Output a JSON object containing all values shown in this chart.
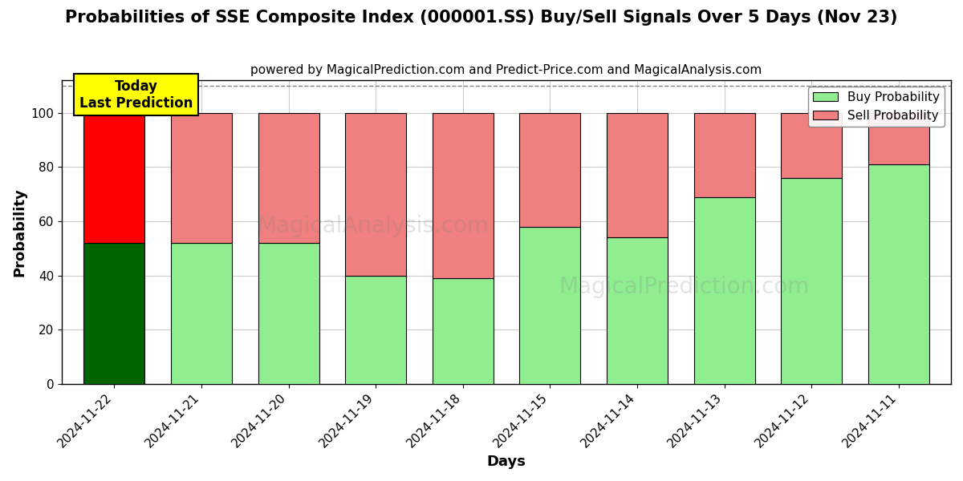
{
  "title": "Probabilities of SSE Composite Index (000001.SS) Buy/Sell Signals Over 5 Days (Nov 23)",
  "subtitle": "powered by MagicalPrediction.com and Predict-Price.com and MagicalAnalysis.com",
  "xlabel": "Days",
  "ylabel": "Probability",
  "categories": [
    "2024-11-22",
    "2024-11-21",
    "2024-11-20",
    "2024-11-19",
    "2024-11-18",
    "2024-11-15",
    "2024-11-14",
    "2024-11-13",
    "2024-11-12",
    "2024-11-11"
  ],
  "buy_values": [
    52,
    52,
    52,
    40,
    39,
    58,
    54,
    69,
    76,
    81
  ],
  "sell_values": [
    48,
    48,
    48,
    60,
    61,
    42,
    46,
    31,
    24,
    19
  ],
  "today_buy_color": "#006400",
  "today_sell_color": "#FF0000",
  "normal_buy_color": "#90EE90",
  "normal_sell_color": "#F08080",
  "legend_buy_color": "#90EE90",
  "legend_sell_color": "#F08080",
  "today_annotation_bg": "#FFFF00",
  "today_annotation_text": "Today\nLast Prediction",
  "ylim": [
    0,
    112
  ],
  "yticks": [
    0,
    20,
    40,
    60,
    80,
    100
  ],
  "dashed_line_y": 110,
  "background_color": "#ffffff",
  "grid_color": "#cccccc",
  "bar_edge_color": "#000000",
  "title_fontsize": 15,
  "subtitle_fontsize": 11,
  "axis_label_fontsize": 13,
  "tick_fontsize": 11
}
